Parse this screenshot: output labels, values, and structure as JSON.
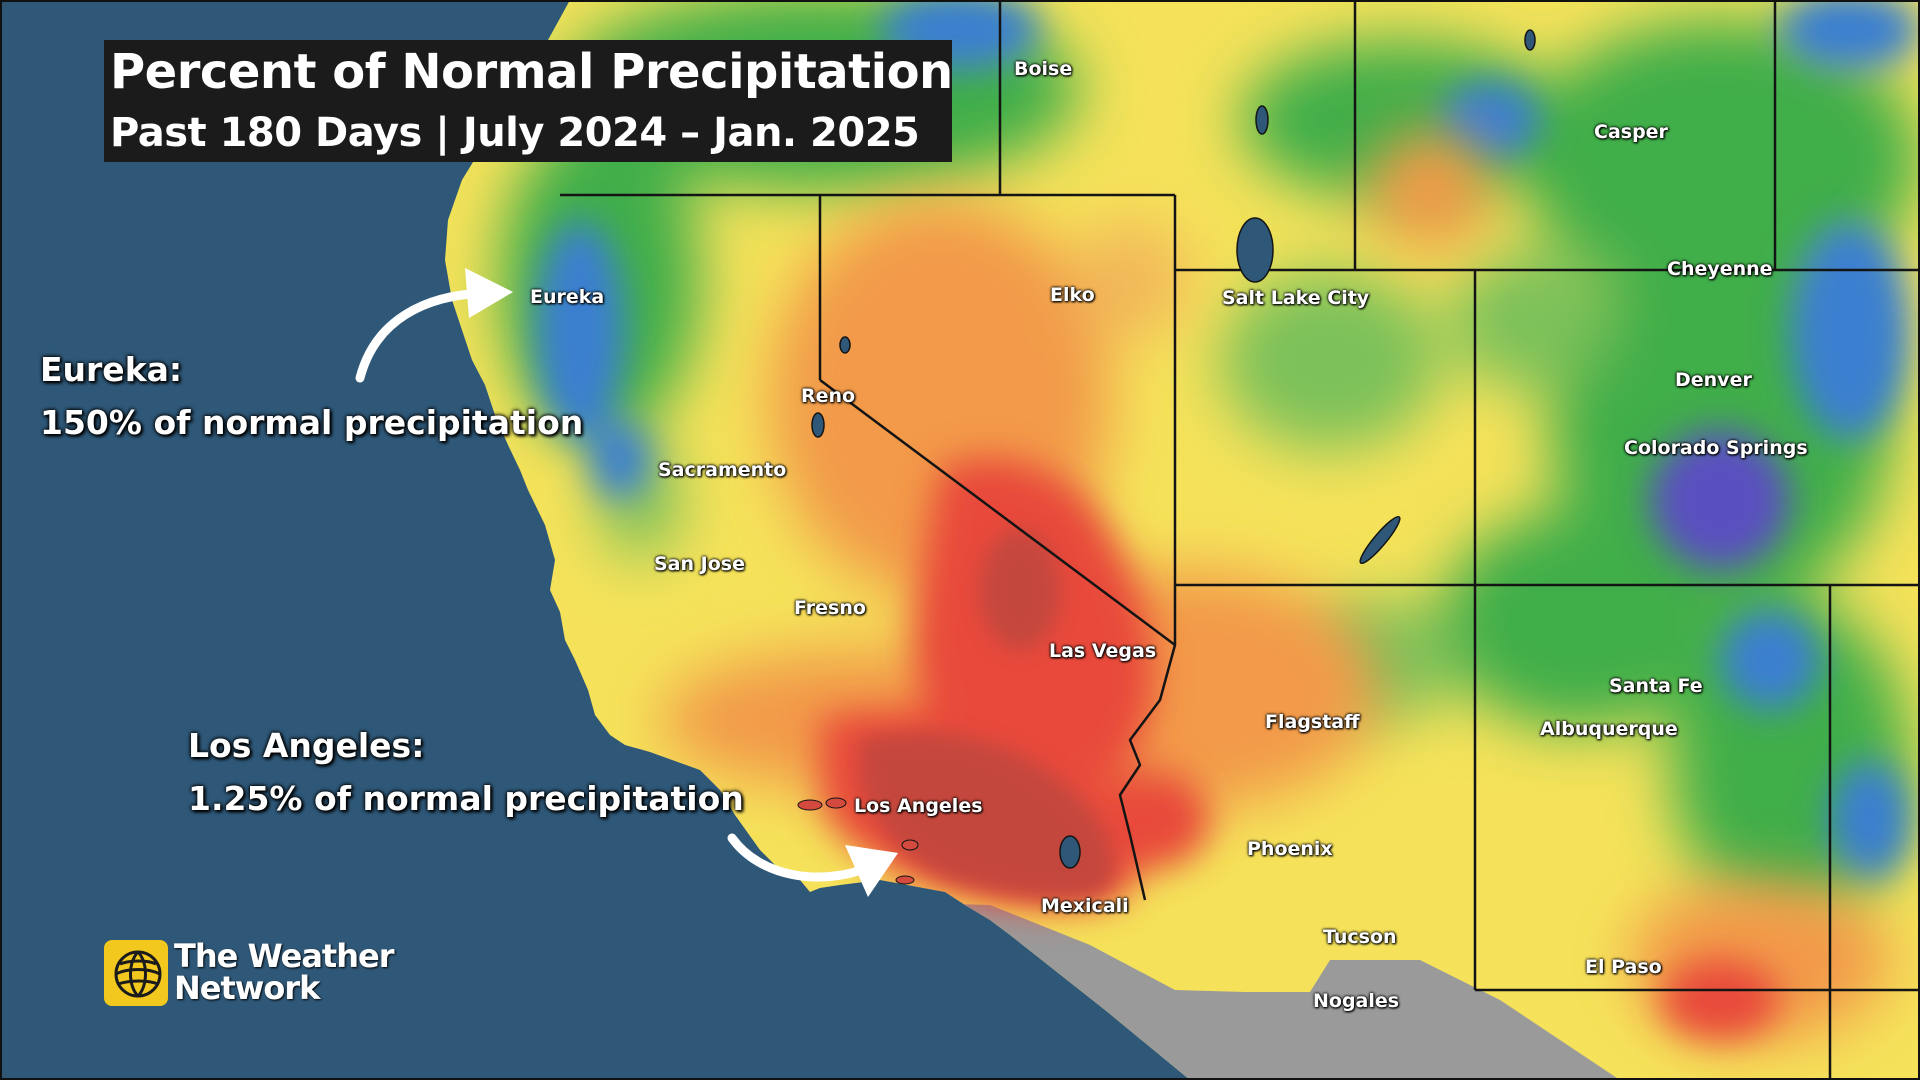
{
  "title": {
    "line1": "Percent of Normal Precipitation",
    "line2": "Past 180 Days | July 2024 – Jan. 2025"
  },
  "cities": [
    {
      "key": "boise",
      "label": "Boise"
    },
    {
      "key": "casper",
      "label": "Casper"
    },
    {
      "key": "cheyenne",
      "label": "Cheyenne"
    },
    {
      "key": "eureka",
      "label": "Eureka"
    },
    {
      "key": "elko",
      "label": "Elko"
    },
    {
      "key": "salt-lake-city",
      "label": "Salt Lake City"
    },
    {
      "key": "denver",
      "label": "Denver"
    },
    {
      "key": "reno",
      "label": "Reno"
    },
    {
      "key": "colorado-springs",
      "label": "Colorado Springs"
    },
    {
      "key": "sacramento",
      "label": "Sacramento"
    },
    {
      "key": "san-jose",
      "label": "San Jose"
    },
    {
      "key": "fresno",
      "label": "Fresno"
    },
    {
      "key": "las-vegas",
      "label": "Las Vegas"
    },
    {
      "key": "santa-fe",
      "label": "Santa Fe"
    },
    {
      "key": "flagstaff",
      "label": "Flagstaff"
    },
    {
      "key": "albuquerque",
      "label": "Albuquerque"
    },
    {
      "key": "los-angeles",
      "label": "Los Angeles"
    },
    {
      "key": "phoenix",
      "label": "Phoenix"
    },
    {
      "key": "mexicali",
      "label": "Mexicali"
    },
    {
      "key": "tucson",
      "label": "Tucson"
    },
    {
      "key": "el-paso",
      "label": "El Paso"
    },
    {
      "key": "nogales",
      "label": "Nogales"
    }
  ],
  "callouts": {
    "eureka": {
      "heading": "Eureka:",
      "text": "150% of normal precipitation"
    },
    "los_angeles": {
      "heading": "Los Angeles:",
      "text": "1.25% of normal precipitation"
    }
  },
  "brand": {
    "line1": "The Weather",
    "line2": "Network"
  },
  "colors": {
    "ocean": "#2f5878",
    "very_dry": "#c4473c",
    "dry": "#e8483a",
    "below_normal": "#f29a4a",
    "near_normal": "#f5e25a",
    "above_normal": "#3fae4a",
    "wet": "#3a7fd0",
    "very_wet": "#5a4fc0",
    "mexico_land": "#9a9a9a",
    "title_bg": "#1b1b1b",
    "logo_yellow": "#f2c81e"
  }
}
